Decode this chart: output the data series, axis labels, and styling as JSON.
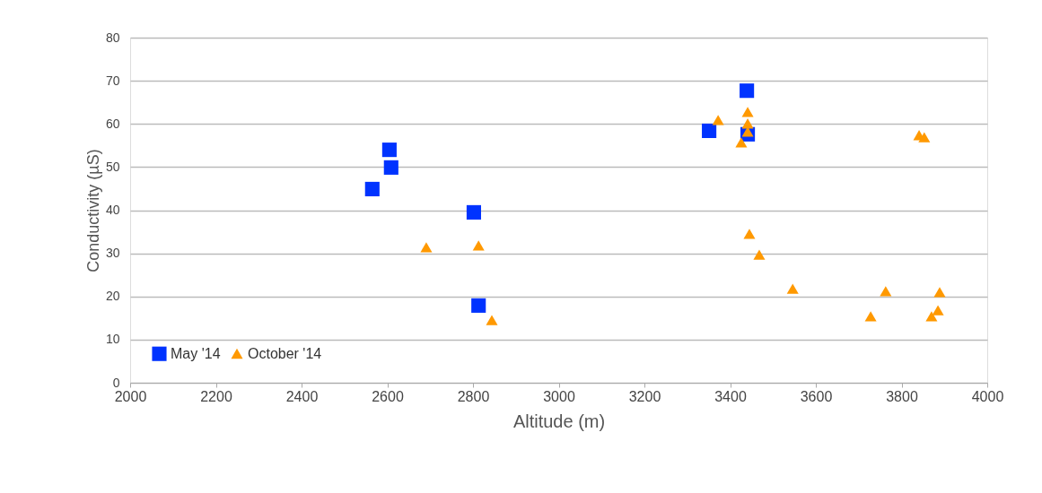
{
  "chart_data": {
    "type": "scatter",
    "xlabel": "Altitude (m)",
    "ylabel": "Conductivity  (µS)",
    "xlim": [
      2000,
      4000
    ],
    "xticks": [
      2000,
      2200,
      2400,
      2600,
      2800,
      3000,
      3200,
      3400,
      3600,
      3800,
      4000
    ],
    "ylim": [
      0,
      80
    ],
    "yticks": [
      0,
      10,
      20,
      30,
      40,
      50,
      60,
      70,
      80
    ],
    "grid": "y",
    "legend": "bottom left",
    "series": [
      {
        "name": "May '14",
        "color": "#0033ff",
        "marker": "square",
        "x": [
          2565,
          2605,
          2609,
          2802,
          2813,
          3351,
          3439,
          3441
        ],
        "values": [
          44.9,
          54.0,
          49.9,
          39.5,
          17.9,
          58.4,
          67.7,
          57.6
        ]
      },
      {
        "name": "October '14",
        "color": "#ff9900",
        "marker": "triangle",
        "x": [
          2691,
          2813,
          2844,
          3372,
          3426,
          3441,
          3441,
          3441,
          3445,
          3468,
          3546,
          3728,
          3763,
          3841,
          3853,
          3870,
          3889,
          3885
        ],
        "values": [
          31.4,
          31.8,
          14.5,
          60.9,
          55.7,
          62.8,
          60.1,
          58.2,
          34.5,
          29.7,
          21.8,
          15.4,
          21.2,
          57.4,
          56.9,
          15.4,
          21.0,
          16.8
        ]
      }
    ]
  }
}
